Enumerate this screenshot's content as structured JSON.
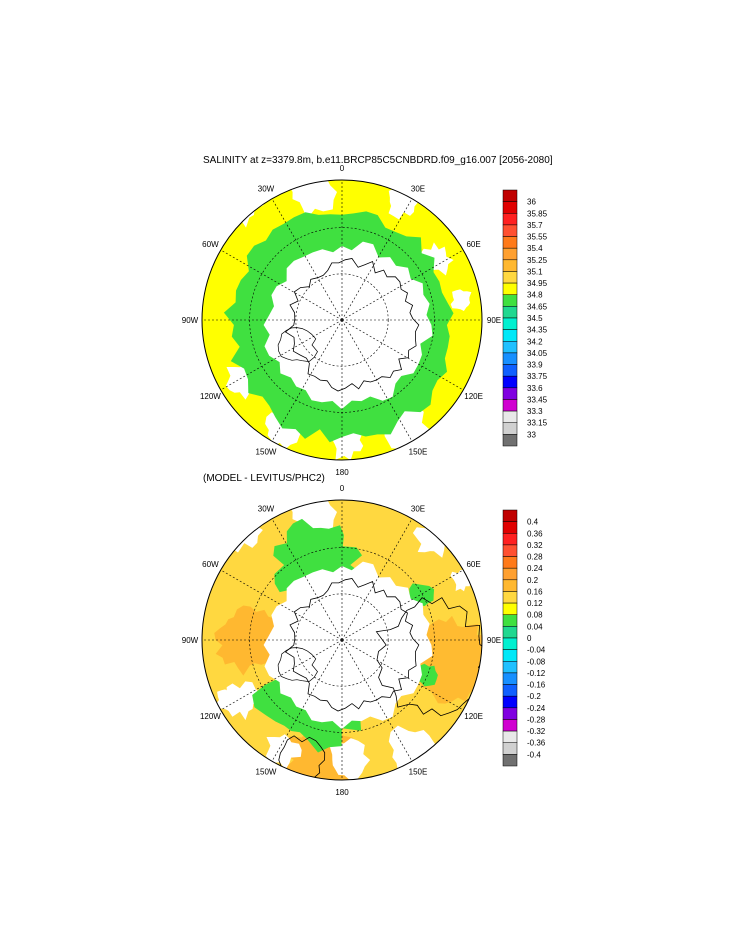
{
  "top_panel": {
    "title": "SALINITY at z=3379.8m, b.e11.BRCP85C5CNBDRD.f09_g16.007 [2056-2080]",
    "lon_labels": [
      "0",
      "30E",
      "60E",
      "90E",
      "120E",
      "150E",
      "180",
      "150W",
      "120W",
      "90W",
      "60W",
      "30W"
    ],
    "colorbar": {
      "labels": [
        "36",
        "35.85",
        "35.7",
        "35.55",
        "35.4",
        "35.25",
        "35.1",
        "34.95",
        "34.8",
        "34.65",
        "34.5",
        "34.35",
        "34.2",
        "34.05",
        "33.9",
        "33.75",
        "33.6",
        "33.45",
        "33.3",
        "33.15",
        "33"
      ],
      "colors": [
        "#c00000",
        "#e00000",
        "#ff2020",
        "#ff5030",
        "#ff7a1a",
        "#ffa030",
        "#ffb830",
        "#ffd840",
        "#ffff00",
        "#40e040",
        "#20d890",
        "#00f0d0",
        "#00e8f8",
        "#20c0ff",
        "#1890ff",
        "#1060ff",
        "#0000ff",
        "#8000e0",
        "#d000d0",
        "#e8e8e8",
        "#d0d0d0",
        "#707070"
      ]
    }
  },
  "bottom_panel": {
    "title": "(MODEL - LEVITUS/PHC2)",
    "lon_labels": [
      "0",
      "30E",
      "60E",
      "90E",
      "120E",
      "150E",
      "180",
      "150W",
      "120W",
      "90W",
      "60W",
      "30W"
    ],
    "colorbar": {
      "labels": [
        "0.4",
        "0.36",
        "0.32",
        "0.28",
        "0.24",
        "0.2",
        "0.16",
        "0.12",
        "0.08",
        "0.04",
        "0",
        "-0.04",
        "-0.08",
        "-0.12",
        "-0.16",
        "-0.2",
        "-0.24",
        "-0.28",
        "-0.32",
        "-0.36",
        "-0.4"
      ],
      "colors": [
        "#c00000",
        "#e00000",
        "#ff2020",
        "#ff5030",
        "#ff7a1a",
        "#ffa030",
        "#ffb830",
        "#ffd840",
        "#ffff00",
        "#40e040",
        "#20d890",
        "#00f0d0",
        "#00e8f8",
        "#20c0ff",
        "#1890ff",
        "#1060ff",
        "#0000ff",
        "#8000e0",
        "#d000d0",
        "#e8e8e8",
        "#d0d0d0",
        "#707070"
      ]
    }
  }
}
